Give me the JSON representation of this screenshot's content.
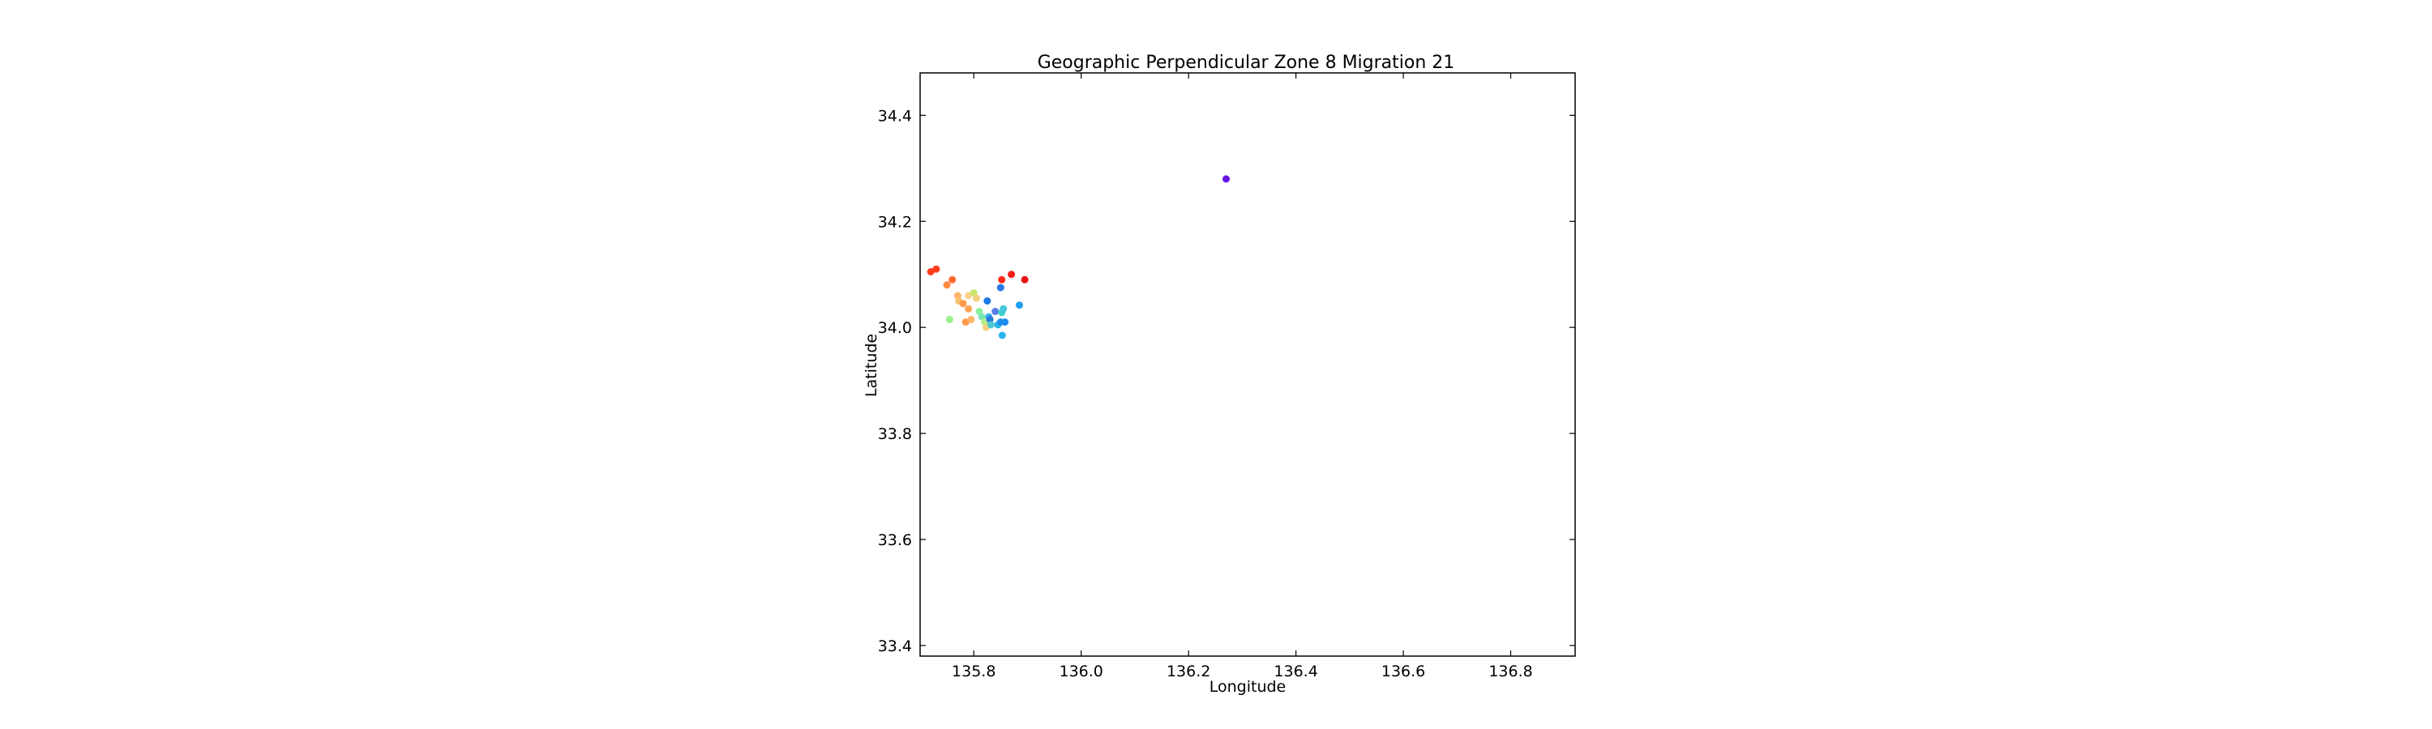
{
  "chart_data": {
    "type": "scatter",
    "title": "Geographic Perpendicular Zone 8 Migration 21",
    "xlabel": "Longitude",
    "ylabel": "Latitude",
    "xlim": [
      135.7,
      136.92
    ],
    "ylim": [
      33.38,
      34.48
    ],
    "xticks": [
      135.8,
      136.0,
      136.2,
      136.4,
      136.6,
      136.8
    ],
    "xtick_labels": [
      "135.8",
      "136.0",
      "136.2",
      "136.4",
      "136.6",
      "136.8"
    ],
    "yticks": [
      33.4,
      33.6,
      33.8,
      34.0,
      34.2,
      34.4
    ],
    "ytick_labels": [
      "33.4",
      "33.6",
      "33.8",
      "34.0",
      "34.2",
      "34.4"
    ],
    "grid": false,
    "legend": "none",
    "points": [
      {
        "x": 135.72,
        "y": 34.105,
        "color": "#ff3d1f"
      },
      {
        "x": 135.73,
        "y": 34.11,
        "color": "#ff3d1f"
      },
      {
        "x": 135.75,
        "y": 34.08,
        "color": "#ff8a40"
      },
      {
        "x": 135.76,
        "y": 34.09,
        "color": "#ff6a2d"
      },
      {
        "x": 135.77,
        "y": 34.06,
        "color": "#ffb46b"
      },
      {
        "x": 135.772,
        "y": 34.05,
        "color": "#f7c372"
      },
      {
        "x": 135.78,
        "y": 34.045,
        "color": "#ff9a4a"
      },
      {
        "x": 135.79,
        "y": 34.06,
        "color": "#ffd38a"
      },
      {
        "x": 135.79,
        "y": 34.035,
        "color": "#ffa552"
      },
      {
        "x": 135.785,
        "y": 34.01,
        "color": "#ff9a4a"
      },
      {
        "x": 135.795,
        "y": 34.015,
        "color": "#ffb46b"
      },
      {
        "x": 135.8,
        "y": 34.065,
        "color": "#c8e66b"
      },
      {
        "x": 135.805,
        "y": 34.055,
        "color": "#f0d080"
      },
      {
        "x": 135.755,
        "y": 34.015,
        "color": "#9af08a"
      },
      {
        "x": 135.81,
        "y": 34.03,
        "color": "#8cf0a0"
      },
      {
        "x": 135.815,
        "y": 34.02,
        "color": "#78e6b4"
      },
      {
        "x": 135.82,
        "y": 34.01,
        "color": "#b4f08a"
      },
      {
        "x": 135.823,
        "y": 34.0,
        "color": "#f5d080"
      },
      {
        "x": 135.825,
        "y": 34.05,
        "color": "#1e78e6"
      },
      {
        "x": 135.828,
        "y": 34.02,
        "color": "#3cb4e6"
      },
      {
        "x": 135.83,
        "y": 34.015,
        "color": "#2878e0"
      },
      {
        "x": 135.832,
        "y": 34.005,
        "color": "#50c8d2"
      },
      {
        "x": 135.84,
        "y": 34.03,
        "color": "#5a7ae6"
      },
      {
        "x": 135.845,
        "y": 34.005,
        "color": "#28b4e6"
      },
      {
        "x": 135.85,
        "y": 34.01,
        "color": "#1e90f0"
      },
      {
        "x": 135.852,
        "y": 34.028,
        "color": "#3cd2c8"
      },
      {
        "x": 135.855,
        "y": 34.035,
        "color": "#46c8dc"
      },
      {
        "x": 135.853,
        "y": 33.985,
        "color": "#28b4f0"
      },
      {
        "x": 135.858,
        "y": 34.01,
        "color": "#1e8cf0"
      },
      {
        "x": 135.85,
        "y": 34.075,
        "color": "#2878e6"
      },
      {
        "x": 135.852,
        "y": 34.09,
        "color": "#ff2a1a"
      },
      {
        "x": 135.87,
        "y": 34.1,
        "color": "#f01e14"
      },
      {
        "x": 135.885,
        "y": 34.042,
        "color": "#1ea0f0"
      },
      {
        "x": 135.895,
        "y": 34.09,
        "color": "#e61414"
      },
      {
        "x": 136.27,
        "y": 34.28,
        "color": "#6a14e6"
      }
    ]
  }
}
